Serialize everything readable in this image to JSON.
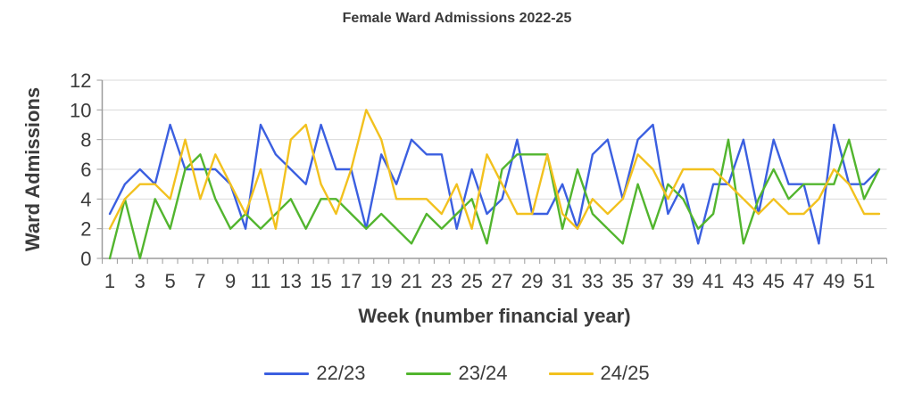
{
  "title": "Female Ward Admissions 2022-25",
  "chart_data": {
    "type": "line",
    "title": "Female Ward Admissions 2022-25",
    "xlabel": "Week (number financial year)",
    "ylabel": "Ward Admissions",
    "x": [
      1,
      2,
      3,
      4,
      5,
      6,
      7,
      8,
      9,
      10,
      11,
      12,
      13,
      14,
      15,
      16,
      17,
      18,
      19,
      20,
      21,
      22,
      23,
      24,
      25,
      26,
      27,
      28,
      29,
      30,
      31,
      32,
      33,
      34,
      35,
      36,
      37,
      38,
      39,
      40,
      41,
      42,
      43,
      44,
      45,
      46,
      47,
      48,
      49,
      50,
      51,
      52
    ],
    "xtick_labels": [
      "1",
      "3",
      "5",
      "7",
      "9",
      "11",
      "13",
      "15",
      "17",
      "19",
      "21",
      "23",
      "25",
      "27",
      "29",
      "31",
      "33",
      "35",
      "37",
      "39",
      "41",
      "43",
      "45",
      "47",
      "49",
      "51"
    ],
    "ylim": [
      0,
      12
    ],
    "ytick_step": 2,
    "ytick_labels": [
      "0",
      "2",
      "4",
      "6",
      "8",
      "10",
      "12"
    ],
    "grid": "horizontal",
    "legend_position": "bottom",
    "series": [
      {
        "name": "22/23",
        "color": "#3b5fe0",
        "values": [
          3,
          5,
          6,
          5,
          9,
          6,
          6,
          6,
          5,
          2,
          9,
          7,
          6,
          5,
          9,
          6,
          6,
          2,
          7,
          5,
          8,
          7,
          7,
          2,
          6,
          3,
          4,
          8,
          3,
          3,
          5,
          2,
          7,
          8,
          4,
          8,
          9,
          3,
          5,
          1,
          5,
          5,
          8,
          3,
          8,
          5,
          5,
          1,
          9,
          5,
          5,
          6
        ]
      },
      {
        "name": "23/24",
        "color": "#52b52e",
        "values": [
          0,
          4,
          0,
          4,
          2,
          6,
          7,
          4,
          2,
          3,
          2,
          3,
          4,
          2,
          4,
          4,
          3,
          2,
          3,
          2,
          1,
          3,
          2,
          3,
          4,
          1,
          6,
          7,
          7,
          7,
          2,
          6,
          3,
          2,
          1,
          5,
          2,
          5,
          4,
          2,
          3,
          8,
          1,
          4,
          6,
          4,
          5,
          5,
          5,
          8,
          4,
          6
        ]
      },
      {
        "name": "24/25",
        "color": "#f2c11e",
        "values": [
          2,
          4,
          5,
          5,
          4,
          8,
          4,
          7,
          5,
          3,
          6,
          2,
          8,
          9,
          5,
          3,
          6,
          10,
          8,
          4,
          4,
          4,
          3,
          5,
          2,
          7,
          5,
          3,
          3,
          7,
          3,
          2,
          4,
          3,
          4,
          7,
          6,
          4,
          6,
          6,
          6,
          5,
          4,
          3,
          4,
          3,
          3,
          4,
          6,
          5,
          3,
          3
        ]
      }
    ]
  },
  "colors": {
    "text": "#3b3b3b",
    "gridline": "#d9d9d9",
    "axis": "#9b9b9b",
    "background": "#ffffff"
  }
}
